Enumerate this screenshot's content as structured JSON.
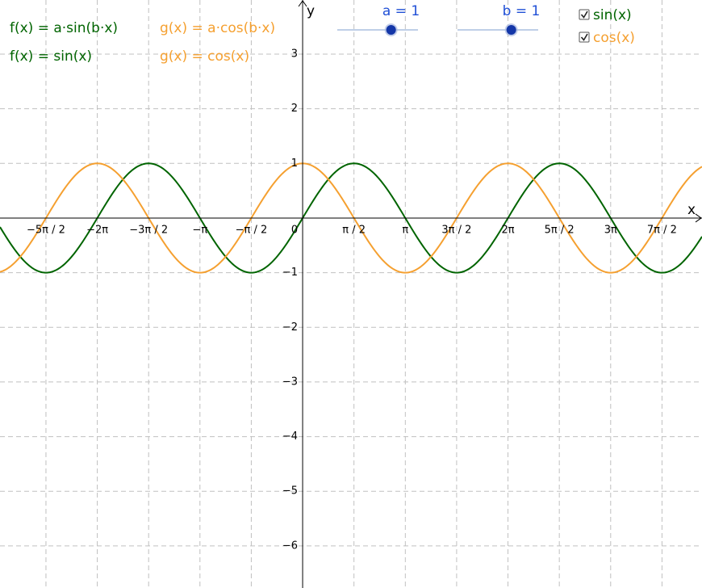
{
  "graph": {
    "xlim": [
      -9.26,
      12.22
    ],
    "ylim": [
      -6.77,
      3.99
    ],
    "x_axis_label": "x",
    "y_axis_label": "y",
    "xticks": [
      {
        "value": -7.854,
        "label": "−5π / 2"
      },
      {
        "value": -6.283,
        "label": "−2π"
      },
      {
        "value": -4.712,
        "label": "−3π / 2"
      },
      {
        "value": -3.142,
        "label": "−π"
      },
      {
        "value": -1.571,
        "label": "−π / 2"
      },
      0,
      {
        "value": 1.571,
        "label": "π / 2"
      },
      {
        "value": 3.142,
        "label": "π"
      },
      {
        "value": 4.712,
        "label": "3π / 2"
      },
      {
        "value": 6.283,
        "label": "2π"
      },
      {
        "value": 7.854,
        "label": "5π / 2"
      },
      {
        "value": 9.425,
        "label": "3π"
      },
      {
        "value": 10.996,
        "label": "7π / 2"
      }
    ],
    "yticks": [
      {
        "value": -6,
        "label": "−6"
      },
      {
        "value": -5,
        "label": "−5"
      },
      {
        "value": -4,
        "label": "−4"
      },
      {
        "value": -3,
        "label": "−3"
      },
      {
        "value": -2,
        "label": "−2"
      },
      {
        "value": -1,
        "label": "−1"
      },
      1,
      2,
      3
    ],
    "grid": true,
    "functions": [
      {
        "definition": "f(x) = a·sin(b·x)",
        "display": "f(x) = sin(x)",
        "kind": "sin",
        "color": "#006400"
      },
      {
        "definition": "g(x) = a·cos(b·x)",
        "display": "g(x) = cos(x)",
        "kind": "cos",
        "color": "#f5a030"
      }
    ]
  },
  "sliders": [
    {
      "label": "a = 1",
      "value": 1,
      "min": -1,
      "max": 2
    },
    {
      "label": "b = 1",
      "value": 1,
      "min": -1,
      "max": 2
    }
  ],
  "checkboxes": [
    {
      "label": "sin(x)",
      "checked": true,
      "color": "#006400"
    },
    {
      "label": "cos(x)",
      "checked": true,
      "color": "#f5a030"
    }
  ]
}
